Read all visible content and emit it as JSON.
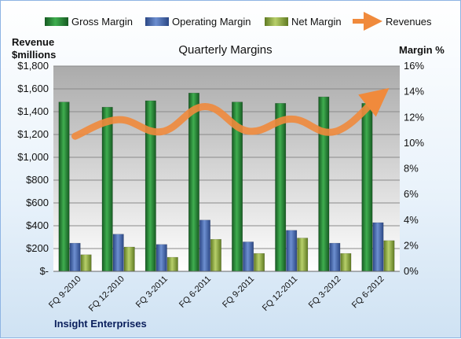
{
  "chart_data": {
    "type": "bar",
    "title": "Quarterly Margins",
    "y_left_label_line1": "Revenue",
    "y_left_label_line2": "$millions",
    "y_right_label": "Margin %",
    "y_left_lim": [
      0,
      1800
    ],
    "y_right_lim": [
      0,
      16
    ],
    "y_left_ticks": [
      "$-",
      "$200",
      "$400",
      "$600",
      "$800",
      "$1,000",
      "$1,200",
      "$1,400",
      "$1,600",
      "$1,800"
    ],
    "y_right_ticks": [
      "0%",
      "2%",
      "4%",
      "6%",
      "8%",
      "10%",
      "12%",
      "14%",
      "16%"
    ],
    "categories": [
      "FQ 9-2010",
      "FQ 12-2010",
      "FQ 3-2011",
      "FQ 6-2011",
      "FQ 9-2011",
      "FQ 12-2011",
      "FQ 3-2012",
      "FQ 6-2012"
    ],
    "series": [
      {
        "name": "Gross Margin",
        "axis": "right",
        "color": "#2e8b3a",
        "values": [
          13.2,
          12.8,
          13.3,
          13.9,
          13.2,
          13.1,
          13.6,
          13.1
        ]
      },
      {
        "name": "Operating Margin",
        "axis": "right",
        "color": "#4f6fb3",
        "values": [
          2.2,
          2.9,
          2.1,
          4.0,
          2.3,
          3.2,
          2.2,
          3.8
        ]
      },
      {
        "name": "Net Margin",
        "axis": "right",
        "color": "#9bb64a",
        "values": [
          1.3,
          1.9,
          1.1,
          2.5,
          1.4,
          2.6,
          1.4,
          2.4
        ]
      },
      {
        "name": "Revenues",
        "axis": "left",
        "type": "line",
        "color": "#f08a3c",
        "values": [
          1185,
          1330,
          1225,
          1445,
          1230,
          1335,
          1225,
          1530
        ]
      }
    ],
    "grid": true,
    "legend_position": "top",
    "footer": "Insight Enterprises"
  }
}
